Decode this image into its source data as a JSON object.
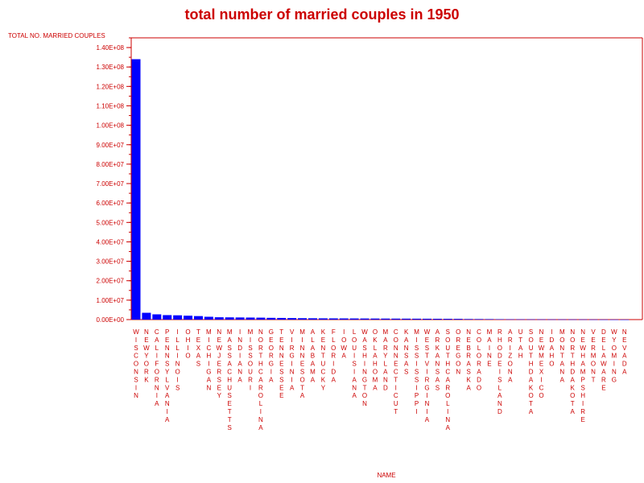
{
  "colors": {
    "text": "#cc0000",
    "axis": "#cc0000",
    "bar": "#0000ff"
  },
  "chart_data": {
    "type": "bar",
    "title": "total number of married couples in 1950",
    "ylabel": "TOTAL NO. MARRIED COUPLES",
    "xlabel": "NAME",
    "ylim": [
      0,
      145000000
    ],
    "yticks": [
      0,
      10000000,
      20000000,
      30000000,
      40000000,
      50000000,
      60000000,
      70000000,
      80000000,
      90000000,
      100000000,
      110000000,
      120000000,
      130000000,
      140000000
    ],
    "ytick_labels": [
      "0.00E+00",
      "1.00E+07",
      "2.00E+07",
      "3.00E+07",
      "4.00E+07",
      "5.00E+07",
      "6.00E+07",
      "7.00E+07",
      "8.00E+07",
      "9.00E+07",
      "1.00E+08",
      "1.10E+08",
      "1.20E+08",
      "1.30E+08",
      "1.40E+08"
    ],
    "grid": false,
    "categories": [
      "WISCONSIN",
      "NEW YORK",
      "CALIFORNIA",
      "PENNSYLVANIA",
      "ILLINOIS",
      "OHIO",
      "TEXAS",
      "MICHIGAN",
      "NEW JERSEY",
      "MASSACHUSETTS",
      "INDIANA",
      "MISSOURI",
      "NORTH CAROLINA",
      "GEORGIA",
      "TENNESSEE",
      "VIRGINIA",
      "MINNESOTA",
      "ALABAMA",
      "KENTUCKY",
      "FLORIDA",
      "IOWA",
      "LOUISIANA",
      "WASHINGTON",
      "OKLAHOMA",
      "MARYLAND",
      "CONNECTICUT",
      "KANSAS",
      "MISSISSIPPI",
      "WEST VIRGINIA",
      "ARKANSAS",
      "SOUTH CAROLINA",
      "OREGON",
      "NEBRASKA",
      "COLORADO",
      "MAINE",
      "RHODE ISLAND",
      "ARIZONA",
      "UTAH",
      "SOUTH DAKOTA",
      "NEW MEXICO",
      "IDAHO",
      "MONTANA",
      "NORTH DAKOTA",
      "NEW HAMPSHIRE",
      "VERMONT",
      "DELAWARE",
      "WYOMING",
      "NEVADA"
    ],
    "values": [
      134000000,
      3500000,
      2700000,
      2300000,
      2200000,
      2000000,
      1800000,
      1450000,
      1200000,
      1150000,
      1100000,
      1050000,
      1000000,
      900000,
      850000,
      780000,
      720000,
      680000,
      640000,
      620000,
      600000,
      580000,
      560000,
      540000,
      520000,
      500000,
      480000,
      460000,
      440000,
      420000,
      400000,
      380000,
      300000,
      280000,
      250000,
      200000,
      150000,
      140000,
      130000,
      120000,
      110000,
      110000,
      100000,
      100000,
      80000,
      60000,
      50000,
      30000
    ]
  }
}
